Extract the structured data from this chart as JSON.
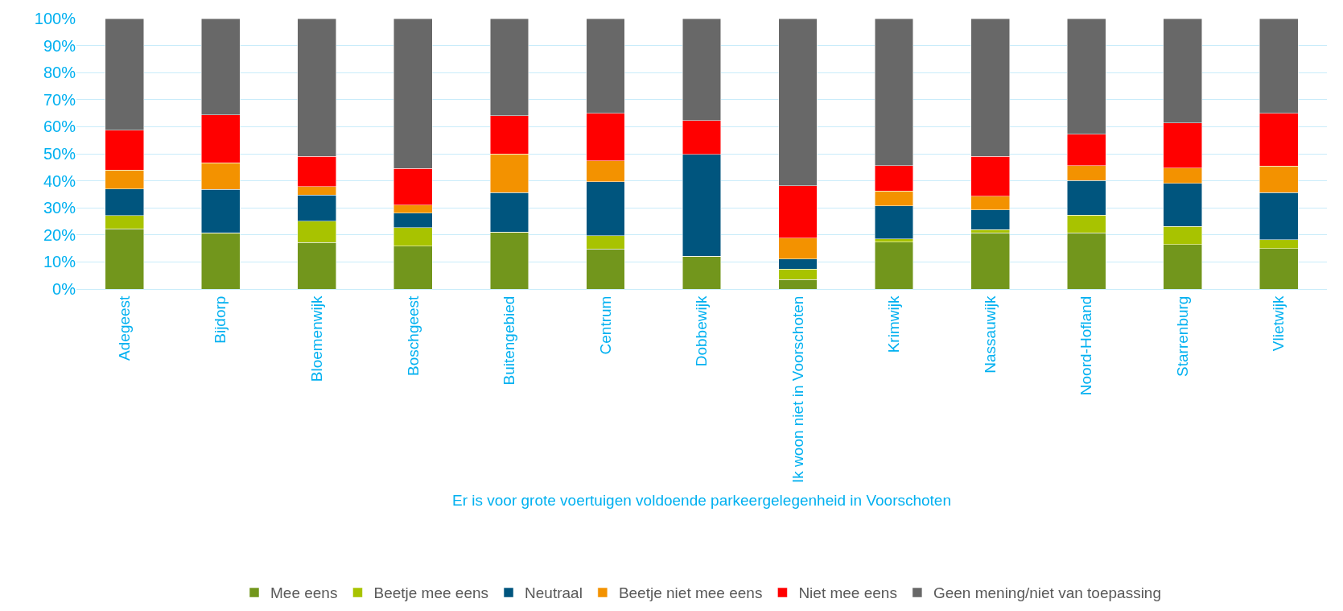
{
  "chart_data": {
    "type": "bar",
    "stacked": true,
    "xlabel": "Er is voor grote voertuigen voldoende parkeergelegenheid in Voorschoten",
    "categories": [
      "Adegeest",
      "Bijdorp",
      "Bloemenwijk",
      "Boschgeest",
      "Buitengebied",
      "Centrum",
      "Dobbewijk",
      "Ik woon niet in Voorschoten",
      "Krimwijk",
      "Nassauwijk",
      "Noord-Hofland",
      "Starrenburg",
      "Vlietwijk"
    ],
    "series": [
      {
        "name": "Mee eens",
        "color": "#72961c",
        "values": [
          22.3,
          20.7,
          17.2,
          15.9,
          21.1,
          14.8,
          12.1,
          3.5,
          17.3,
          20.7,
          20.7,
          16.5,
          14.9
        ]
      },
      {
        "name": "Beetje mee eens",
        "color": "#a8c300",
        "values": [
          4.9,
          0,
          7.9,
          6.8,
          0,
          4.9,
          0,
          3.8,
          1.3,
          1.2,
          6.6,
          6.7,
          3.4
        ]
      },
      {
        "name": "Neutraal",
        "color": "#00557e",
        "values": [
          9.8,
          16.2,
          9.6,
          5.4,
          14.5,
          20.0,
          37.7,
          3.8,
          12.1,
          7.4,
          12.8,
          15.8,
          17.3
        ]
      },
      {
        "name": "Beetje niet mee eens",
        "color": "#f39200",
        "values": [
          7.0,
          9.7,
          3.1,
          2.9,
          14.3,
          7.7,
          0,
          7.8,
          5.5,
          5.0,
          5.5,
          5.7,
          9.9
        ]
      },
      {
        "name": "Niet mee eens",
        "color": "#ff0000",
        "values": [
          14.7,
          17.8,
          11.2,
          13.5,
          14.2,
          17.5,
          12.5,
          19.3,
          9.4,
          14.8,
          11.6,
          16.7,
          19.5
        ]
      },
      {
        "name": "Geen mening/niet van toepassing",
        "color": "#686868",
        "values": [
          41.3,
          35.6,
          51.0,
          55.5,
          35.9,
          35.1,
          37.7,
          61.8,
          54.4,
          50.9,
          42.8,
          38.6,
          35.0
        ]
      }
    ],
    "ylim": [
      0,
      100
    ],
    "yticks": [
      {
        "value": 0,
        "label": "0%"
      },
      {
        "value": 10,
        "label": "10%"
      },
      {
        "value": 20,
        "label": "20%"
      },
      {
        "value": 30,
        "label": "30%"
      },
      {
        "value": 40,
        "label": "40%"
      },
      {
        "value": 50,
        "label": "50%"
      },
      {
        "value": 60,
        "label": "60%"
      },
      {
        "value": 70,
        "label": "70%"
      },
      {
        "value": 80,
        "label": "80%"
      },
      {
        "value": 90,
        "label": "90%"
      },
      {
        "value": 100,
        "label": "100%"
      }
    ],
    "grid": "y",
    "legend": "bottom"
  }
}
